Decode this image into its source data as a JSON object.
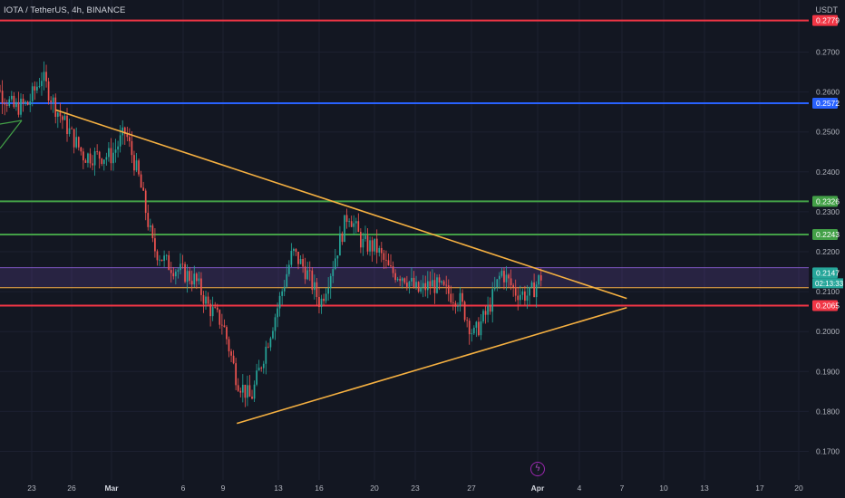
{
  "header": {
    "symbol_line": "IOTA / TetherUS, 4h, BINANCE",
    "currency": "USDT"
  },
  "price_labels": [
    {
      "value": 0.2779,
      "text": "0.2779",
      "color": "#f23645"
    },
    {
      "value": 0.2572,
      "text": "0.2572",
      "color": "#2962ff"
    },
    {
      "value": 0.2326,
      "text": "0.2326",
      "color": "#43a047"
    },
    {
      "value": 0.2243,
      "text": "0.2243",
      "color": "#43a047"
    },
    {
      "value": 0.2147,
      "text": "0.2147",
      "color": "#26a69a"
    },
    {
      "value": 0.2065,
      "text": "0.2065",
      "color": "#f23645"
    }
  ],
  "countdown": "02:13:33",
  "icons": {
    "alert": "lightning-bolt-icon"
  },
  "chart_data": {
    "type": "candlestick",
    "title": "IOTA / TetherUS, 4h, BINANCE",
    "y_axis": {
      "range": [
        0.1655,
        0.2815
      ],
      "ticks": [
        "0.2700",
        "0.2600",
        "0.2500",
        "0.2400",
        "0.2300",
        "0.2200",
        "0.2100",
        "0.2000",
        "0.1900",
        "0.1800",
        "0.1700"
      ]
    },
    "x_axis": {
      "ticks": [
        "23",
        "26",
        "Mar",
        "6",
        "9",
        "13",
        "16",
        "20",
        "23",
        "27",
        "Apr",
        "4",
        "7",
        "10",
        "13",
        "17",
        "20"
      ]
    },
    "horizontal_levels": [
      {
        "price": 0.2779,
        "color": "#f23645"
      },
      {
        "price": 0.2572,
        "color": "#2962ff"
      },
      {
        "price": 0.2326,
        "color": "#43a047"
      },
      {
        "price": 0.2243,
        "color": "#43a047"
      },
      {
        "price": 0.2065,
        "color": "#f23645"
      }
    ],
    "zone": {
      "top": 0.216,
      "bottom": 0.211,
      "color": "#7e57c2"
    },
    "trendlines": [
      {
        "name": "upper",
        "from": {
          "date": "Feb 26",
          "price": 0.2555
        },
        "to": {
          "date": "Apr 7",
          "price": 0.2083
        },
        "color": "#f5b041"
      },
      {
        "name": "lower",
        "from": {
          "date": "Mar 10",
          "price": 0.177
        },
        "to": {
          "date": "Apr 7",
          "price": 0.206
        },
        "color": "#f5b041"
      }
    ],
    "last_price": 0.2147,
    "candle_colors": {
      "up": "#26a69a",
      "down": "#ef5350"
    },
    "price_path": [
      [
        "Feb 21",
        0.27
      ],
      [
        "Feb 22",
        0.26
      ],
      [
        "Feb 23",
        0.256
      ],
      [
        "Feb 24",
        0.257
      ],
      [
        "Feb 25",
        0.264
      ],
      [
        "Feb 26",
        0.256
      ],
      [
        "Feb 27",
        0.25
      ],
      [
        "Feb 28",
        0.244
      ],
      [
        "Mar 1",
        0.244
      ],
      [
        "Mar 2",
        0.25
      ],
      [
        "Mar 3",
        0.238
      ],
      [
        "Mar 4",
        0.221
      ],
      [
        "Mar 5",
        0.217
      ],
      [
        "Mar 6",
        0.215
      ],
      [
        "Mar 7",
        0.213
      ],
      [
        "Mar 8",
        0.206
      ],
      [
        "Mar 9",
        0.202
      ],
      [
        "Mar 10",
        0.188
      ],
      [
        "Mar 11",
        0.183
      ],
      [
        "Mar 12",
        0.195
      ],
      [
        "Mar 13",
        0.207
      ],
      [
        "Mar 14",
        0.22
      ],
      [
        "Mar 15",
        0.215
      ],
      [
        "Mar 16",
        0.207
      ],
      [
        "Mar 17",
        0.218
      ],
      [
        "Mar 18",
        0.23
      ],
      [
        "Mar 19",
        0.222
      ],
      [
        "Mar 20",
        0.221
      ],
      [
        "Mar 21",
        0.215
      ],
      [
        "Mar 22",
        0.214
      ],
      [
        "Mar 23",
        0.21
      ],
      [
        "Mar 24",
        0.212
      ],
      [
        "Mar 25",
        0.21
      ],
      [
        "Mar 26",
        0.208
      ],
      [
        "Mar 27",
        0.199
      ],
      [
        "Mar 28",
        0.205
      ],
      [
        "Mar 29",
        0.215
      ],
      [
        "Mar 30",
        0.21
      ],
      [
        "Mar 31",
        0.209
      ],
      [
        "Apr 1",
        0.2147
      ]
    ]
  }
}
